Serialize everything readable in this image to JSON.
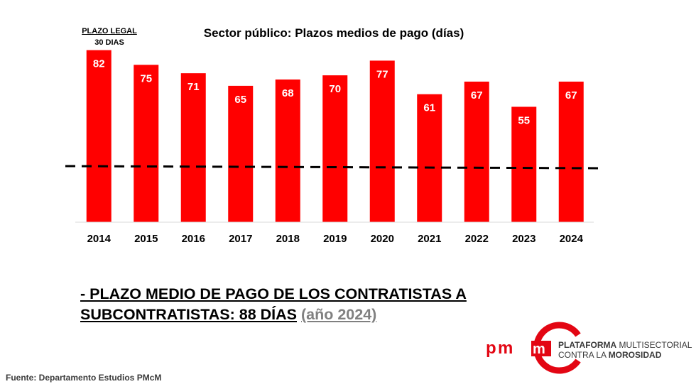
{
  "chart_data": {
    "type": "bar",
    "title": "Sector público: Plazos medios de pago (días)",
    "categories": [
      "2014",
      "2015",
      "2016",
      "2017",
      "2018",
      "2019",
      "2020",
      "2021",
      "2022",
      "2023",
      "2024"
    ],
    "values": [
      82,
      75,
      71,
      65,
      68,
      70,
      77,
      61,
      67,
      55,
      67
    ],
    "ylim": [
      0,
      90
    ],
    "reference_line": {
      "value": 30,
      "label": "PLAZO LEGAL",
      "sublabel": "30 DIAS",
      "style": "dashed"
    },
    "xlabel": "",
    "ylabel": "",
    "bar_color": "#ff0000",
    "label_color": "#ffffff"
  },
  "summary": {
    "line1": "- PLAZO MEDIO DE PAGO DE LOS CONTRATISTAS A",
    "line2": "SUBCONTRATISTAS: 88 DÍAS",
    "year_note": "(año 2024)"
  },
  "source": "Fuente: Departamento Estudios PMcM",
  "logo": {
    "mark": "pmcm",
    "line1_bold": "PLATAFORMA",
    "line1_rest": " MULTISECTORIAL",
    "line2_rest": "CONTRA LA ",
    "line2_bold": "MOROSIDAD",
    "accent": "#e30613"
  }
}
